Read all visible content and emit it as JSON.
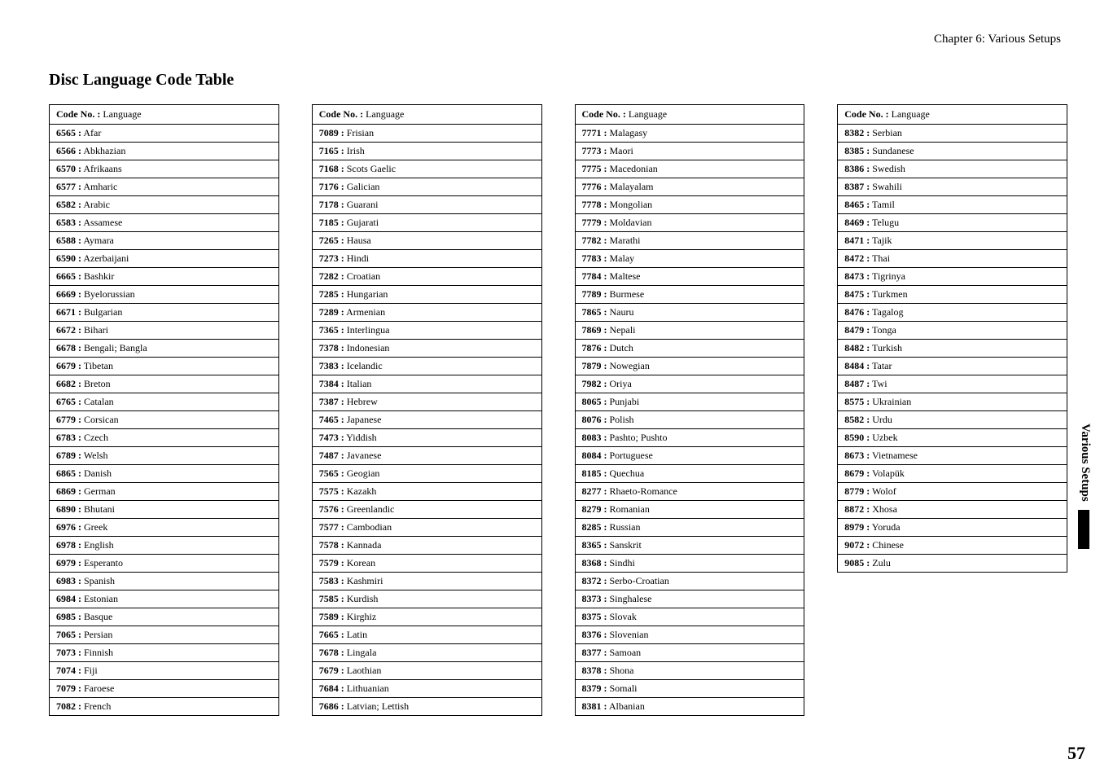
{
  "header": {
    "chapter": "Chapter 6: Various Setups"
  },
  "title": "Disc Language Code Table",
  "table_header": {
    "bold": "Code No. :",
    "rest": " Language"
  },
  "side_tab": "Various Setups",
  "page_number": "57",
  "columns": [
    [
      {
        "code": "6565 :",
        "lang": "Afar"
      },
      {
        "code": "6566 :",
        "lang": "Abkhazian"
      },
      {
        "code": "6570 :",
        "lang": "Afrikaans"
      },
      {
        "code": "6577 :",
        "lang": "Amharic"
      },
      {
        "code": "6582 :",
        "lang": "Arabic"
      },
      {
        "code": "6583 :",
        "lang": "Assamese"
      },
      {
        "code": "6588 :",
        "lang": "Aymara"
      },
      {
        "code": "6590 :",
        "lang": "Azerbaijani"
      },
      {
        "code": "6665 :",
        "lang": "Bashkir"
      },
      {
        "code": "6669  :",
        "lang": "Byelorussian"
      },
      {
        "code": "6671 :",
        "lang": "Bulgarian"
      },
      {
        "code": "6672 :",
        "lang": "Bihari"
      },
      {
        "code": "6678 :",
        "lang": "Bengali; Bangla"
      },
      {
        "code": "6679 :",
        "lang": "Tibetan"
      },
      {
        "code": "6682 :",
        "lang": "Breton"
      },
      {
        "code": "6765 :",
        "lang": "Catalan"
      },
      {
        "code": "6779 :",
        "lang": "Corsican"
      },
      {
        "code": "6783 :",
        "lang": "Czech"
      },
      {
        "code": "6789 :",
        "lang": "Welsh"
      },
      {
        "code": "6865 :",
        "lang": "Danish"
      },
      {
        "code": "6869 :",
        "lang": "German"
      },
      {
        "code": "6890 :",
        "lang": "Bhutani"
      },
      {
        "code": "6976 :",
        "lang": "Greek"
      },
      {
        "code": "6978 :",
        "lang": "English"
      },
      {
        "code": "6979 :",
        "lang": "Esperanto"
      },
      {
        "code": "6983 :",
        "lang": "Spanish"
      },
      {
        "code": "6984 :",
        "lang": "Estonian"
      },
      {
        "code": "6985 :",
        "lang": "Basque"
      },
      {
        "code": "7065 :",
        "lang": "Persian"
      },
      {
        "code": "7073 :",
        "lang": "Finnish"
      },
      {
        "code": "7074 :",
        "lang": "Fiji"
      },
      {
        "code": "7079 :",
        "lang": "Faroese"
      },
      {
        "code": "7082 :",
        "lang": "French"
      }
    ],
    [
      {
        "code": "7089 :",
        "lang": "Frisian"
      },
      {
        "code": "7165 :",
        "lang": "Irish"
      },
      {
        "code": "7168 :",
        "lang": "Scots Gaelic"
      },
      {
        "code": "7176 :",
        "lang": "Galician"
      },
      {
        "code": "7178 :",
        "lang": "Guarani"
      },
      {
        "code": "7185 :",
        "lang": "Gujarati"
      },
      {
        "code": "7265 :",
        "lang": "Hausa"
      },
      {
        "code": "7273 :",
        "lang": "Hindi"
      },
      {
        "code": "7282 :",
        "lang": "Croatian"
      },
      {
        "code": "7285 :",
        "lang": "Hungarian"
      },
      {
        "code": "7289 :",
        "lang": "Armenian"
      },
      {
        "code": "7365 :",
        "lang": "Interlingua"
      },
      {
        "code": "7378 :",
        "lang": "Indonesian"
      },
      {
        "code": "7383 :",
        "lang": "Icelandic"
      },
      {
        "code": "7384 :",
        "lang": "Italian"
      },
      {
        "code": "7387 :",
        "lang": "Hebrew"
      },
      {
        "code": "7465 :",
        "lang": "Japanese"
      },
      {
        "code": "7473 :",
        "lang": "Yiddish"
      },
      {
        "code": "7487 :",
        "lang": "Javanese"
      },
      {
        "code": "7565 :",
        "lang": "Geogian"
      },
      {
        "code": "7575 :",
        "lang": "Kazakh"
      },
      {
        "code": "7576 :",
        "lang": "Greenlandic"
      },
      {
        "code": "7577 :",
        "lang": "Cambodian"
      },
      {
        "code": "7578 :",
        "lang": "Kannada"
      },
      {
        "code": "7579 :",
        "lang": "Korean"
      },
      {
        "code": "7583 :",
        "lang": "Kashmiri"
      },
      {
        "code": "7585 :",
        "lang": "Kurdish"
      },
      {
        "code": "7589 :",
        "lang": "Kirghiz"
      },
      {
        "code": "7665 :",
        "lang": "Latin"
      },
      {
        "code": "7678 :",
        "lang": "Lingala"
      },
      {
        "code": "7679 :",
        "lang": "Laothian"
      },
      {
        "code": "7684 :",
        "lang": "Lithuanian"
      },
      {
        "code": "7686  :",
        "lang": "Latvian; Lettish"
      }
    ],
    [
      {
        "code": "7771 :",
        "lang": "Malagasy"
      },
      {
        "code": "7773 :",
        "lang": "Maori"
      },
      {
        "code": "7775 :",
        "lang": "Macedonian"
      },
      {
        "code": "7776 :",
        "lang": "Malayalam"
      },
      {
        "code": "7778 :",
        "lang": "Mongolian"
      },
      {
        "code": "7779 :",
        "lang": "Moldavian"
      },
      {
        "code": "7782 :",
        "lang": "Marathi"
      },
      {
        "code": "7783 :",
        "lang": "Malay"
      },
      {
        "code": "7784 :",
        "lang": "Maltese"
      },
      {
        "code": "7789 :",
        "lang": "Burmese"
      },
      {
        "code": "7865 :",
        "lang": "Nauru"
      },
      {
        "code": "7869 :",
        "lang": "Nepali"
      },
      {
        "code": "7876 :",
        "lang": "Dutch"
      },
      {
        "code": "7879 :",
        "lang": "Nowegian"
      },
      {
        "code": "7982 :",
        "lang": "Oriya"
      },
      {
        "code": "8065 :",
        "lang": "Punjabi"
      },
      {
        "code": "8076 :",
        "lang": "Polish"
      },
      {
        "code": "8083 :",
        "lang": "Pashto; Pushto"
      },
      {
        "code": "8084 :",
        "lang": "Portuguese"
      },
      {
        "code": "8185 :",
        "lang": "Quechua"
      },
      {
        "code": "8277 :",
        "lang": "Rhaeto-Romance"
      },
      {
        "code": "8279 :",
        "lang": "Romanian"
      },
      {
        "code": "8285 :",
        "lang": "Russian"
      },
      {
        "code": "8365 :",
        "lang": "Sanskrit"
      },
      {
        "code": "8368 :",
        "lang": "Sindhi"
      },
      {
        "code": "8372 :",
        "lang": "Serbo-Croatian"
      },
      {
        "code": "8373 :",
        "lang": "Singhalese"
      },
      {
        "code": "8375 :",
        "lang": "Slovak"
      },
      {
        "code": "8376 :",
        "lang": "Slovenian"
      },
      {
        "code": "8377 :",
        "lang": "Samoan"
      },
      {
        "code": "8378 :",
        "lang": "Shona"
      },
      {
        "code": "8379 :",
        "lang": "Somali"
      },
      {
        "code": "8381 :",
        "lang": "Albanian"
      }
    ],
    [
      {
        "code": "8382 :",
        "lang": "Serbian"
      },
      {
        "code": "8385 :",
        "lang": "Sundanese"
      },
      {
        "code": "8386 :",
        "lang": "Swedish"
      },
      {
        "code": "8387 :",
        "lang": "Swahili"
      },
      {
        "code": "8465 :",
        "lang": "Tamil"
      },
      {
        "code": "8469 :",
        "lang": "Telugu"
      },
      {
        "code": "8471 :",
        "lang": "Tajik"
      },
      {
        "code": "8472 :",
        "lang": "Thai"
      },
      {
        "code": "8473 :",
        "lang": "Tigrinya"
      },
      {
        "code": "8475 :",
        "lang": "Turkmen"
      },
      {
        "code": "8476 :",
        "lang": "Tagalog"
      },
      {
        "code": "8479 :",
        "lang": "Tonga"
      },
      {
        "code": "8482 :",
        "lang": "Turkish"
      },
      {
        "code": "8484 :",
        "lang": "Tatar"
      },
      {
        "code": "8487 :",
        "lang": "Twi"
      },
      {
        "code": "8575 :",
        "lang": "Ukrainian"
      },
      {
        "code": "8582 :",
        "lang": "Urdu"
      },
      {
        "code": "8590 :",
        "lang": "Uzbek"
      },
      {
        "code": "8673 :",
        "lang": "Vietnamese"
      },
      {
        "code": "8679 :",
        "lang": "Volapük"
      },
      {
        "code": "8779 :",
        "lang": "Wolof"
      },
      {
        "code": "8872 :",
        "lang": "Xhosa"
      },
      {
        "code": "8979 :",
        "lang": "Yoruda"
      },
      {
        "code": "9072 :",
        "lang": "Chinese"
      },
      {
        "code": "9085 :",
        "lang": "Zulu"
      }
    ]
  ]
}
